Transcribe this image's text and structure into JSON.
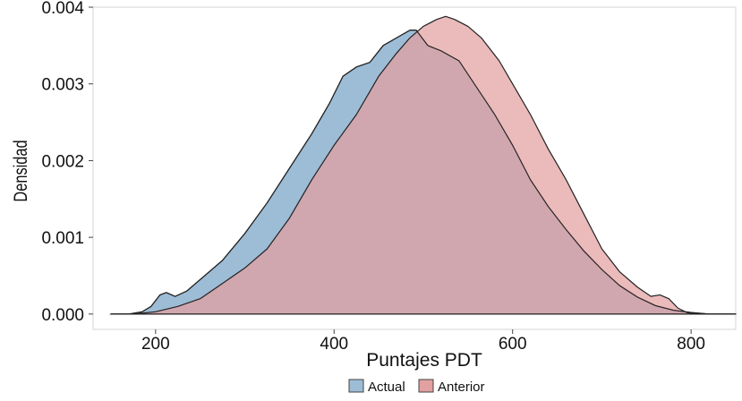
{
  "chart_data": {
    "type": "area",
    "title": "",
    "xlabel": "Puntajes PDT",
    "ylabel": "Densidad",
    "xlim": [
      130,
      850
    ],
    "ylim": [
      -0.0002,
      0.004
    ],
    "x_ticks": [
      200,
      400,
      600,
      800
    ],
    "x_tick_labels": [
      "200",
      "400",
      "600",
      "800"
    ],
    "y_ticks": [
      0.0,
      0.001,
      0.002,
      0.003,
      0.004
    ],
    "y_tick_labels": [
      "0.000",
      "0.001",
      "0.002",
      "0.003",
      "0.004"
    ],
    "grid": false,
    "legend_position": "bottom",
    "series": [
      {
        "name": "Actual",
        "color": "#9dbcd6",
        "x": [
          150,
          170,
          185,
          195,
          205,
          212,
          222,
          235,
          250,
          275,
          300,
          325,
          350,
          375,
          395,
          410,
          425,
          440,
          455,
          470,
          485,
          492,
          505,
          520,
          540,
          560,
          580,
          600,
          620,
          640,
          660,
          680,
          700,
          720,
          740,
          760,
          780,
          800,
          820,
          850
        ],
        "y": [
          0.0,
          0.0,
          3e-05,
          0.0001,
          0.00025,
          0.00028,
          0.00023,
          0.0003,
          0.00045,
          0.0007,
          0.00105,
          0.00145,
          0.0019,
          0.00235,
          0.00275,
          0.0031,
          0.00322,
          0.00328,
          0.0035,
          0.0036,
          0.0037,
          0.0037,
          0.0035,
          0.00343,
          0.0033,
          0.00295,
          0.0026,
          0.0022,
          0.00175,
          0.0014,
          0.0011,
          0.00082,
          0.00058,
          0.00037,
          0.00022,
          0.00011,
          5e-05,
          2e-05,
          0.0,
          0.0
        ]
      },
      {
        "name": "Anterior",
        "color": "#e3a0a0",
        "x": [
          150,
          175,
          200,
          225,
          250,
          275,
          300,
          325,
          350,
          375,
          400,
          425,
          450,
          470,
          485,
          500,
          515,
          525,
          535,
          550,
          565,
          585,
          600,
          620,
          640,
          660,
          680,
          700,
          720,
          740,
          755,
          765,
          775,
          785,
          795,
          810,
          850
        ],
        "y": [
          0.0,
          0.0,
          3e-05,
          0.0001,
          0.0002,
          0.0004,
          0.0006,
          0.00085,
          0.00125,
          0.00175,
          0.0022,
          0.0026,
          0.0031,
          0.0034,
          0.0036,
          0.00375,
          0.00384,
          0.00388,
          0.00384,
          0.00375,
          0.0036,
          0.0033,
          0.003,
          0.0026,
          0.00215,
          0.00175,
          0.0013,
          0.00085,
          0.00055,
          0.00035,
          0.00023,
          0.00025,
          0.0002,
          8e-05,
          2e-05,
          0.0,
          0.0
        ]
      }
    ],
    "overlap_color": "#b2929a"
  }
}
